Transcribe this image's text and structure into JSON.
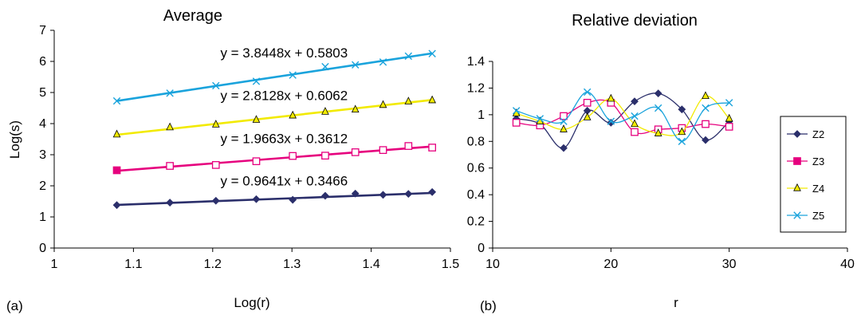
{
  "colors": {
    "Z2": "#2b2f6b",
    "Z3": "#e6007e",
    "Z4": "#f2ea00",
    "Z5": "#1aa3dc"
  },
  "chart_data": [
    {
      "type": "scatter",
      "panel_label": "(a)",
      "title": "Average",
      "xlabel": "Log(r)",
      "ylabel": "Log(s)",
      "xlim": [
        1,
        1.5
      ],
      "ylim": [
        0,
        7
      ],
      "xticks": [
        "1",
        "1.1",
        "1.2",
        "1.3",
        "1.4",
        "1.5"
      ],
      "yticks": [
        "0",
        "1",
        "2",
        "3",
        "4",
        "5",
        "6",
        "7"
      ],
      "grid": false,
      "x": [
        1.079,
        1.146,
        1.204,
        1.255,
        1.301,
        1.342,
        1.38,
        1.415,
        1.447,
        1.477
      ],
      "series": [
        {
          "key": "Z2",
          "marker": "diamond",
          "values": [
            1.38,
            1.46,
            1.52,
            1.57,
            1.55,
            1.68,
            1.75,
            1.71,
            1.74,
            1.8
          ],
          "fit": {
            "equation": "y = 0.9641x + 0.3466",
            "slope": 0.9641,
            "intercept": 0.3466
          }
        },
        {
          "key": "Z3",
          "marker": "square-filled-first",
          "values": [
            2.5,
            2.64,
            2.67,
            2.79,
            2.96,
            2.97,
            3.08,
            3.15,
            3.28,
            3.23
          ],
          "fit": {
            "equation": "y = 1.9663x + 0.3612",
            "slope": 1.9663,
            "intercept": 0.3612
          }
        },
        {
          "key": "Z4",
          "marker": "triangle",
          "values": [
            3.65,
            3.88,
            3.97,
            4.12,
            4.26,
            4.38,
            4.45,
            4.6,
            4.71,
            4.75
          ],
          "fit": {
            "equation": "y = 2.8128x + 0.6062",
            "slope": 2.8128,
            "intercept": 0.6062
          }
        },
        {
          "key": "Z5",
          "marker": "x",
          "values": [
            4.73,
            4.98,
            5.22,
            5.36,
            5.56,
            5.83,
            5.89,
            5.98,
            6.17,
            6.25
          ],
          "fit": {
            "equation": "y = 3.8448x + 0.5803",
            "slope": 3.8448,
            "intercept": 0.5803
          }
        }
      ]
    },
    {
      "type": "line",
      "panel_label": "(b)",
      "title": "Relative deviation",
      "xlabel": "r",
      "ylabel": "",
      "xlim": [
        10,
        40
      ],
      "ylim": [
        0,
        1.4
      ],
      "xticks": [
        "10",
        "20",
        "30",
        "40"
      ],
      "yticks": [
        "0",
        "0.2",
        "0.4",
        "0.6",
        "0.8",
        "1",
        "1.2",
        "1.4"
      ],
      "grid": false,
      "legend": "right",
      "x": [
        12,
        14,
        16,
        18,
        20,
        22,
        24,
        26,
        28,
        30
      ],
      "series": [
        {
          "name": "Z2",
          "key": "Z2",
          "marker": "diamond",
          "values": [
            0.97,
            0.93,
            0.75,
            1.03,
            0.94,
            1.1,
            1.16,
            1.04,
            0.81,
            0.95
          ]
        },
        {
          "name": "Z3",
          "key": "Z3",
          "marker": "square",
          "values": [
            0.94,
            0.92,
            0.99,
            1.09,
            1.09,
            0.87,
            0.89,
            0.9,
            0.93,
            0.91
          ]
        },
        {
          "name": "Z4",
          "key": "Z4",
          "marker": "triangle",
          "values": [
            1.01,
            0.95,
            0.89,
            0.98,
            1.12,
            0.93,
            0.86,
            0.87,
            1.14,
            0.97
          ]
        },
        {
          "name": "Z5",
          "key": "Z5",
          "marker": "x",
          "values": [
            1.03,
            0.97,
            0.95,
            1.17,
            0.95,
            0.99,
            1.05,
            0.8,
            1.05,
            1.09
          ]
        }
      ]
    }
  ]
}
